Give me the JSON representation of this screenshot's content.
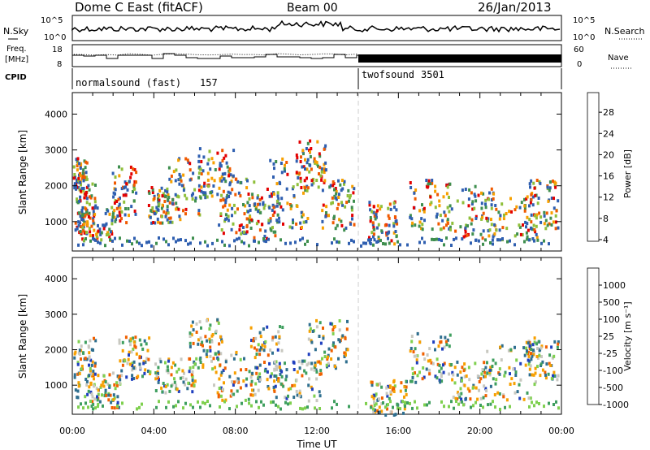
{
  "header": {
    "station": "Dome C East (fitACF)",
    "beam": "Beam 00",
    "date": "26/Jan/2013"
  },
  "top_panels": {
    "nsky_label": "N.Sky",
    "nsearch_label": "N.Search",
    "noise_ticks": [
      "10^5",
      "10^0"
    ],
    "freq_label": [
      "Freq.",
      "[MHz]"
    ],
    "freq_ticks": [
      "18",
      "8"
    ],
    "nave_label": "Nave",
    "nave_ticks": [
      "60",
      "0"
    ],
    "cpid_label": "CPID",
    "cpid_segments": [
      {
        "name": "normalsound (fast)",
        "id": "157"
      },
      {
        "name": "twofsound",
        "id": "3501"
      }
    ]
  },
  "chart_data": [
    {
      "type": "heatmap",
      "ylabel": "Slant Range [km]",
      "xlabel": "Time UT",
      "x_ticks": [
        "00:00",
        "04:00",
        "08:00",
        "12:00",
        "16:00",
        "20:00",
        "00:00"
      ],
      "y_ticks": [
        1000,
        2000,
        3000,
        4000
      ],
      "ylim": [
        180,
        4600
      ],
      "xlim_hours": [
        0,
        24
      ],
      "colorbar": {
        "label": "Power [dB]",
        "ticks": [
          "28",
          "24",
          "20",
          "16",
          "12",
          "8",
          "4"
        ],
        "colors": [
          "#e30000",
          "#f05a00",
          "#f7a000",
          "#8fbf3a",
          "#3f8f4f",
          "#2f5fb0",
          "#1010ff"
        ]
      },
      "scatter_clusters_hours_km": [
        [
          0.3,
          2300,
          0.4,
          500
        ],
        [
          0.6,
          1400,
          0.5,
          700
        ],
        [
          1.2,
          1000,
          0.8,
          500
        ],
        [
          2.5,
          1800,
          0.6,
          800
        ],
        [
          4.2,
          1500,
          0.5,
          500
        ],
        [
          5.5,
          1900,
          0.8,
          900
        ],
        [
          7.0,
          2400,
          0.9,
          700
        ],
        [
          8.0,
          1500,
          0.9,
          800
        ],
        [
          9.3,
          1200,
          0.8,
          700
        ],
        [
          10.5,
          1800,
          1.0,
          1000
        ],
        [
          11.6,
          2600,
          0.8,
          700
        ],
        [
          13.0,
          1500,
          0.8,
          700
        ],
        [
          15.2,
          1000,
          0.7,
          600
        ],
        [
          17.5,
          1500,
          1.0,
          700
        ],
        [
          19.5,
          1300,
          1.2,
          800
        ],
        [
          21.5,
          1100,
          1.3,
          600
        ],
        [
          23.0,
          1500,
          0.8,
          700
        ]
      ]
    },
    {
      "type": "heatmap",
      "ylabel": "Slant Range [km]",
      "xlabel": "Time UT",
      "x_ticks": [
        "00:00",
        "04:00",
        "08:00",
        "12:00",
        "16:00",
        "20:00",
        "00:00"
      ],
      "y_ticks": [
        1000,
        2000,
        3000,
        4000
      ],
      "ylim": [
        180,
        4600
      ],
      "xlim_hours": [
        0,
        24
      ],
      "colorbar": {
        "label": "Velocity [m s⁻¹]",
        "ticks": [
          "1000",
          "500",
          "100",
          "25",
          "-25",
          "-100",
          "-500",
          "-1000"
        ],
        "colors": [
          "#1f3fbf",
          "#2f6f8f",
          "#3f9f5f",
          "#7fd04f",
          "#c8c8c0",
          "#f7a000",
          "#f06000",
          "#e30000"
        ]
      },
      "scatter_clusters_hours_km": [
        [
          0.5,
          1500,
          0.6,
          900
        ],
        [
          1.5,
          900,
          0.8,
          500
        ],
        [
          3.0,
          1800,
          0.8,
          600
        ],
        [
          5.0,
          1300,
          1.0,
          500
        ],
        [
          6.5,
          2200,
          0.8,
          700
        ],
        [
          8.0,
          1300,
          1.2,
          700
        ],
        [
          9.5,
          1800,
          0.8,
          900
        ],
        [
          11.0,
          1200,
          1.2,
          600
        ],
        [
          12.5,
          2200,
          1.0,
          700
        ],
        [
          15.5,
          700,
          0.9,
          500
        ],
        [
          17.5,
          1800,
          1.0,
          700
        ],
        [
          19.5,
          1100,
          1.0,
          600
        ],
        [
          21.5,
          1400,
          1.3,
          800
        ],
        [
          23.0,
          1800,
          0.8,
          600
        ]
      ]
    }
  ]
}
